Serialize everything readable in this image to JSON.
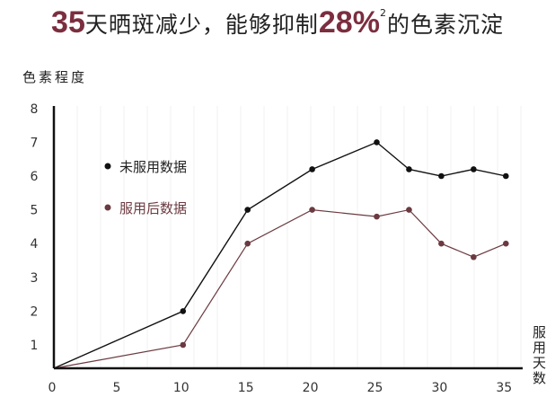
{
  "title": {
    "num1": "35",
    "text1": "天晒斑减少，能够抑制",
    "num2": "28%",
    "sup": "2",
    "text2": "的色素沉淀"
  },
  "colors": {
    "accent": "#7b2e3f",
    "series_before": "#111111",
    "series_after": "#6b3a40"
  },
  "chart_data": {
    "type": "line",
    "ylabel": "色素程度",
    "xlabel": "服用天数",
    "xlim": [
      0,
      35
    ],
    "ylim": [
      0,
      8
    ],
    "xticks": [
      "0",
      "5",
      "10",
      "15",
      "20",
      "25",
      "30",
      "35"
    ],
    "yticks": [
      "1",
      "2",
      "3",
      "4",
      "5",
      "6",
      "7",
      "8"
    ],
    "grid": "vertical-faint",
    "legend": "left-inside",
    "x": [
      0,
      10,
      15,
      20,
      25,
      27.5,
      30,
      32.5,
      35
    ],
    "series": [
      {
        "name": "未服用数据",
        "color": "#111111",
        "values": [
          0,
          2,
          5,
          6.2,
          7,
          6.2,
          6,
          6.2,
          6
        ]
      },
      {
        "name": "服用后数据",
        "color": "#6b3a40",
        "values": [
          0,
          1,
          4,
          5,
          4.8,
          5,
          4,
          3.6,
          4
        ]
      }
    ]
  }
}
